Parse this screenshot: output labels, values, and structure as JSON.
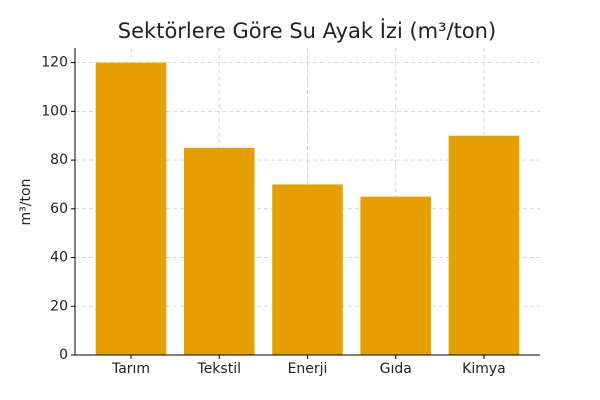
{
  "chart_data": {
    "type": "bar",
    "title": "Sektörlere Göre Su Ayak İzi (m³/ton)",
    "y_label": "m³/ton",
    "categories": [
      "Tarım",
      "Tekstil",
      "Enerji",
      "Gıda",
      "Kimya"
    ],
    "values": [
      120,
      85,
      70,
      65,
      90
    ],
    "color": "#e5a000",
    "ylim": [
      0,
      126
    ],
    "yticks": [
      0,
      20,
      40,
      60,
      80,
      100,
      120
    ],
    "grid": true
  }
}
